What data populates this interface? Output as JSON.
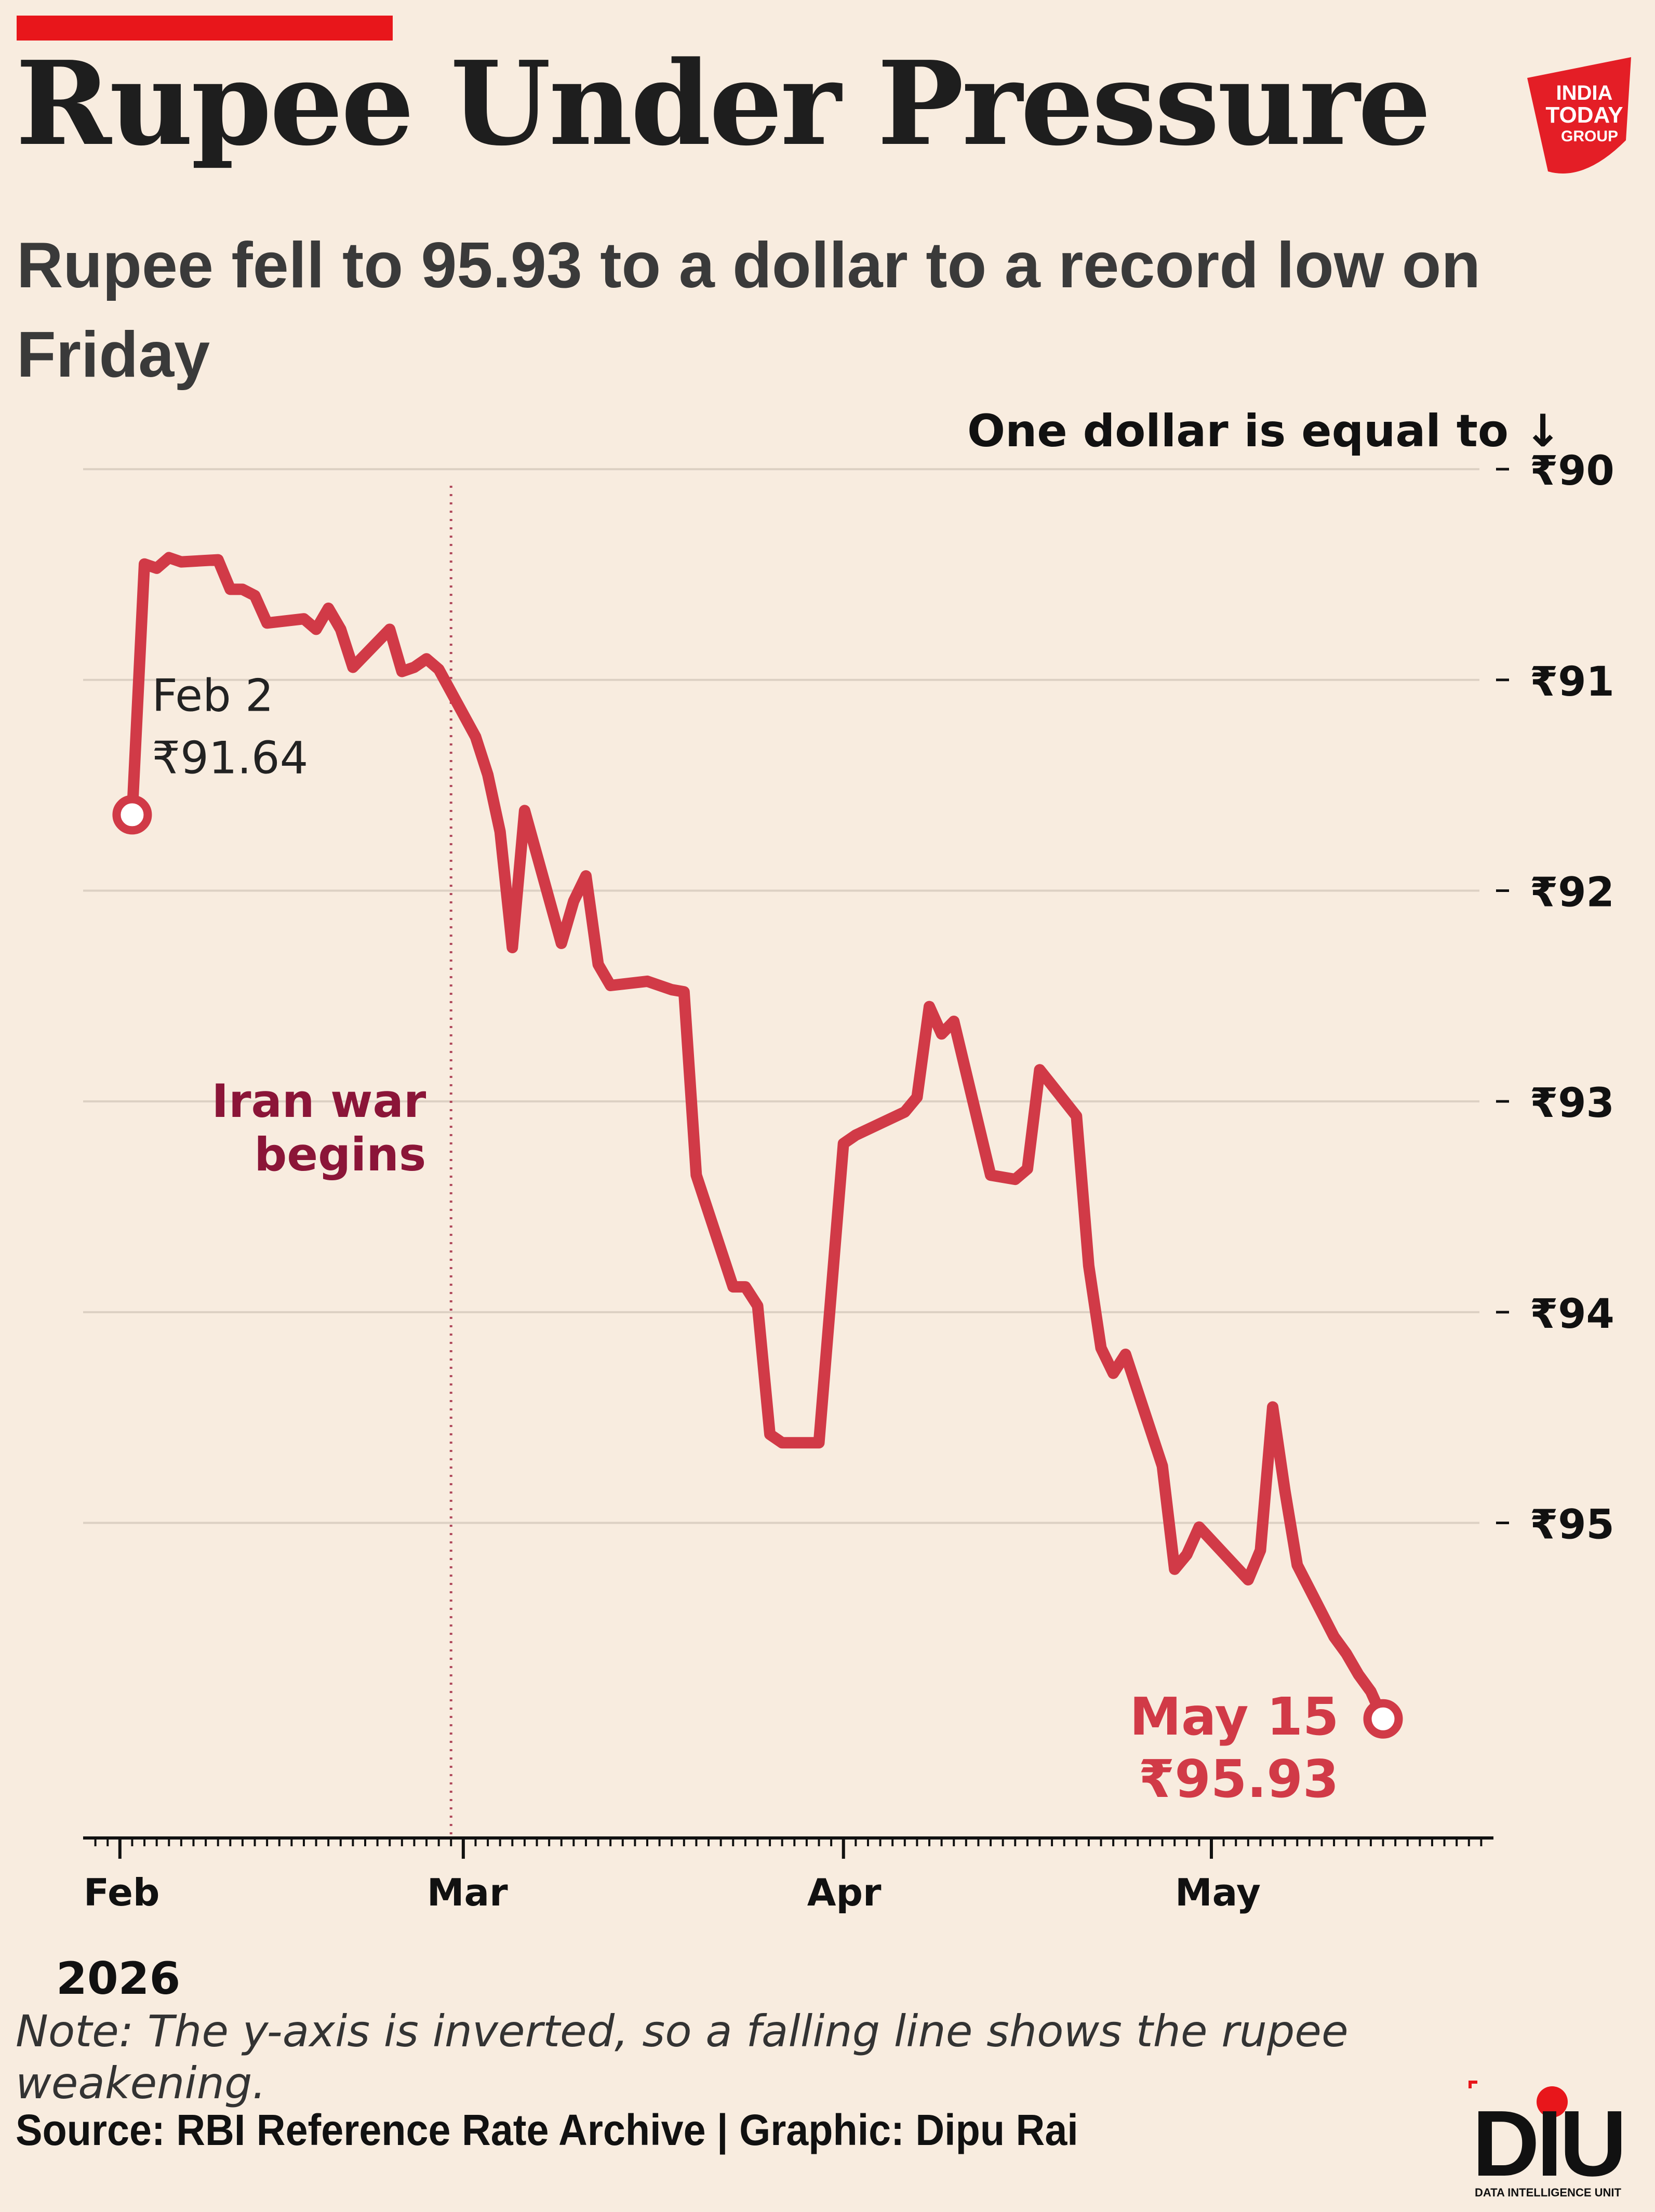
{
  "header": {
    "title": "Rupee Under Pressure",
    "subtitle": "Rupee fell to 95.93 to a dollar to a record low on Friday",
    "logo": "INDIA TODAY GROUP"
  },
  "footer": {
    "note": "Note: The y-axis is inverted, so a falling line shows the rupee weakening.",
    "source": "Source: RBI Reference Rate Archive | Graphic: Dipu Rai",
    "logo": "DIU",
    "logo_sub": "DATA INTELLIGENCE UNIT"
  },
  "colors": {
    "line": "#d13a47",
    "annotation_war": "#8b1538",
    "accent_bar": "#e8161b",
    "background": "#f8ecdf",
    "grid": "#dcd0c3"
  },
  "chart_data": {
    "type": "line",
    "title": "Rupee Under Pressure",
    "ylabel": "One dollar is equal to ↓",
    "y_inverted": true,
    "ylim": [
      89.8,
      96.5
    ],
    "yticks": [
      90,
      91,
      92,
      93,
      94,
      95
    ],
    "ytick_labels": [
      "₹90",
      "₹91",
      "₹92",
      "₹93",
      "₹94",
      "₹95"
    ],
    "xlim": [
      "2026-01-29",
      "2026-05-24"
    ],
    "xtick_dates": [
      "2026-02-01",
      "2026-03-01",
      "2026-04-01",
      "2026-05-01"
    ],
    "xtick_labels": [
      "Feb",
      "Mar",
      "Apr",
      "May"
    ],
    "year_label": "2026",
    "grid": true,
    "series": [
      {
        "x": [
          "2026-02-02",
          "2026-02-03",
          "2026-02-04",
          "2026-02-05",
          "2026-02-06",
          "2026-02-09",
          "2026-02-10",
          "2026-02-11",
          "2026-02-12",
          "2026-02-13",
          "2026-02-16",
          "2026-02-17",
          "2026-02-18",
          "2026-02-19",
          "2026-02-20",
          "2026-02-23",
          "2026-02-24",
          "2026-02-25",
          "2026-02-26",
          "2026-02-27",
          "2026-03-02",
          "2026-03-03",
          "2026-03-04",
          "2026-03-05",
          "2026-03-06",
          "2026-03-09",
          "2026-03-10",
          "2026-03-11",
          "2026-03-12",
          "2026-03-13",
          "2026-03-16",
          "2026-03-17",
          "2026-03-18",
          "2026-03-19",
          "2026-03-20",
          "2026-03-23",
          "2026-03-24",
          "2026-03-25",
          "2026-03-26",
          "2026-03-27",
          "2026-03-30",
          "2026-04-01",
          "2026-04-02",
          "2026-04-06",
          "2026-04-07",
          "2026-04-08",
          "2026-04-09",
          "2026-04-10",
          "2026-04-13",
          "2026-04-15",
          "2026-04-16",
          "2026-04-17",
          "2026-04-20",
          "2026-04-21",
          "2026-04-22",
          "2026-04-23",
          "2026-04-24",
          "2026-04-27",
          "2026-04-28",
          "2026-04-29",
          "2026-04-30",
          "2026-05-04",
          "2026-05-05",
          "2026-05-06",
          "2026-05-07",
          "2026-05-08",
          "2026-05-11",
          "2026-05-12",
          "2026-05-13",
          "2026-05-14",
          "2026-05-15"
        ],
        "values": [
          91.64,
          90.45,
          90.47,
          90.42,
          90.44,
          90.43,
          90.57,
          90.57,
          90.6,
          90.73,
          90.71,
          90.76,
          90.66,
          90.76,
          90.94,
          90.76,
          90.96,
          90.94,
          90.9,
          90.95,
          91.27,
          91.45,
          91.72,
          92.27,
          91.62,
          92.25,
          92.05,
          91.93,
          92.35,
          92.45,
          92.43,
          92.45,
          92.47,
          92.48,
          93.35,
          93.88,
          93.88,
          93.97,
          94.58,
          94.62,
          94.62,
          93.2,
          93.16,
          93.05,
          92.98,
          92.55,
          92.68,
          92.62,
          93.35,
          93.37,
          93.32,
          92.85,
          93.07,
          93.78,
          94.17,
          94.29,
          94.2,
          94.73,
          95.22,
          95.15,
          95.02,
          95.27,
          95.13,
          94.45,
          94.85,
          95.2,
          95.54,
          95.62,
          95.72,
          95.8,
          95.93
        ]
      }
    ],
    "annotations": [
      {
        "text_line1": "Feb 2",
        "text_line2": "₹91.64",
        "x": "2026-02-02",
        "y": 91.64
      },
      {
        "text_line1": "May 15",
        "text_line2": "₹95.93",
        "x": "2026-05-15",
        "y": 95.93
      },
      {
        "text_line1": "Iran war",
        "text_line2": "begins",
        "x": "2026-02-28"
      }
    ]
  }
}
